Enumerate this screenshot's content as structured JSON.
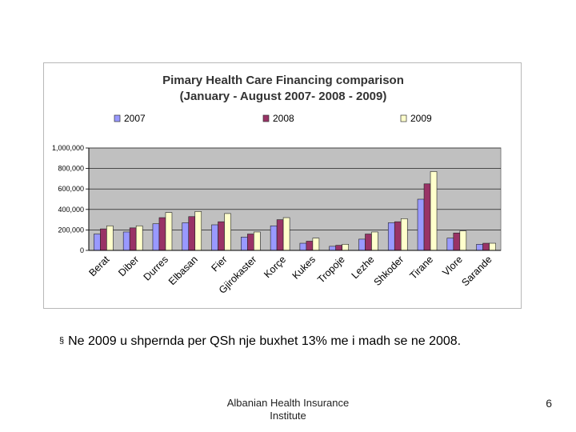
{
  "chart_data": {
    "type": "bar",
    "title_line1": "Pimary Health Care Financing comparison",
    "title_line2": "(January - August 2007- 2008 - 2009)",
    "categories": [
      "Berat",
      "Diber",
      "Durres",
      "Elbasan",
      "Fier",
      "Gjirokaster",
      "Korçe",
      "Kukes",
      "Tropoje",
      "Lezhe",
      "Shkoder",
      "Tirane",
      "Vlore",
      "Sarande"
    ],
    "series": [
      {
        "name": "2007",
        "color": "#9999ff",
        "values": [
          160000,
          180000,
          260000,
          270000,
          250000,
          130000,
          240000,
          70000,
          40000,
          110000,
          270000,
          500000,
          120000,
          60000
        ]
      },
      {
        "name": "2008",
        "color": "#993366",
        "values": [
          210000,
          220000,
          320000,
          330000,
          280000,
          160000,
          300000,
          90000,
          50000,
          160000,
          280000,
          650000,
          170000,
          70000
        ]
      },
      {
        "name": "2009",
        "color": "#ffffcc",
        "values": [
          240000,
          240000,
          370000,
          380000,
          360000,
          180000,
          320000,
          120000,
          60000,
          180000,
          310000,
          770000,
          190000,
          70000
        ]
      }
    ],
    "ylim": [
      0,
      1000000
    ],
    "yticks": [
      0,
      200000,
      400000,
      600000,
      800000,
      1000000
    ],
    "ytick_labels": [
      "0",
      "200,000",
      "400,000",
      "600,000",
      "800,000",
      "1,000,000"
    ],
    "legend": "top",
    "grid": true,
    "xlabel": "",
    "ylabel": ""
  },
  "bullet": {
    "marker": "§",
    "text": "Ne 2009 u shpernda per QSh nje buxhet 13% me i madh se ne 2008."
  },
  "footer": {
    "line1": "Albanian Health Insurance",
    "line2": "Institute"
  },
  "page_number": "6"
}
